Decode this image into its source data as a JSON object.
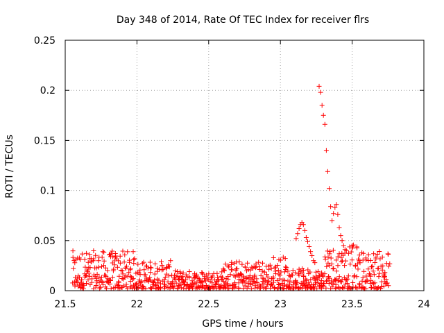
{
  "chart_data": {
    "type": "scatter",
    "title": "Day 348 of 2014, Rate Of TEC Index for receiver flrs",
    "xlabel": "GPS time / hours",
    "ylabel": "ROTI / TECUs",
    "xlim": [
      21.5,
      24
    ],
    "ylim": [
      0,
      0.25
    ],
    "xticks": [
      21.5,
      22,
      22.5,
      23,
      23.5,
      24
    ],
    "xtick_labels": [
      "21.5",
      "22",
      "22.5",
      "23",
      "23.5",
      "24"
    ],
    "yticks": [
      0,
      0.05,
      0.1,
      0.15,
      0.2,
      0.25
    ],
    "ytick_labels": [
      "0",
      "0.05",
      "0.1",
      "0.15",
      "0.2",
      "0.25"
    ],
    "grid": true,
    "marker": "+",
    "color": "#ff0000",
    "series": [
      {
        "name": "ROTI",
        "points": [
          [
            23.27,
            0.204
          ],
          [
            23.28,
            0.198
          ],
          [
            23.29,
            0.185
          ],
          [
            23.3,
            0.175
          ],
          [
            23.31,
            0.166
          ],
          [
            23.32,
            0.14
          ],
          [
            23.33,
            0.119
          ],
          [
            23.34,
            0.102
          ],
          [
            23.35,
            0.084
          ],
          [
            23.36,
            0.07
          ],
          [
            23.37,
            0.077
          ],
          [
            23.38,
            0.083
          ],
          [
            23.39,
            0.086
          ],
          [
            23.4,
            0.076
          ],
          [
            23.41,
            0.063
          ],
          [
            23.42,
            0.055
          ],
          [
            23.43,
            0.05
          ],
          [
            23.44,
            0.045
          ],
          [
            23.45,
            0.041
          ],
          [
            23.46,
            0.04
          ],
          [
            23.11,
            0.052
          ],
          [
            23.12,
            0.057
          ],
          [
            23.13,
            0.062
          ],
          [
            23.14,
            0.066
          ],
          [
            23.15,
            0.068
          ],
          [
            23.16,
            0.066
          ],
          [
            23.17,
            0.06
          ],
          [
            23.18,
            0.053
          ],
          [
            23.19,
            0.049
          ],
          [
            23.2,
            0.044
          ],
          [
            23.21,
            0.039
          ],
          [
            23.22,
            0.035
          ],
          [
            23.23,
            0.03
          ],
          [
            23.24,
            0.028
          ]
        ],
        "baseline_band": {
          "x_range": [
            21.55,
            23.76
          ],
          "y_range": [
            0.002,
            0.045
          ]
        }
      }
    ]
  }
}
